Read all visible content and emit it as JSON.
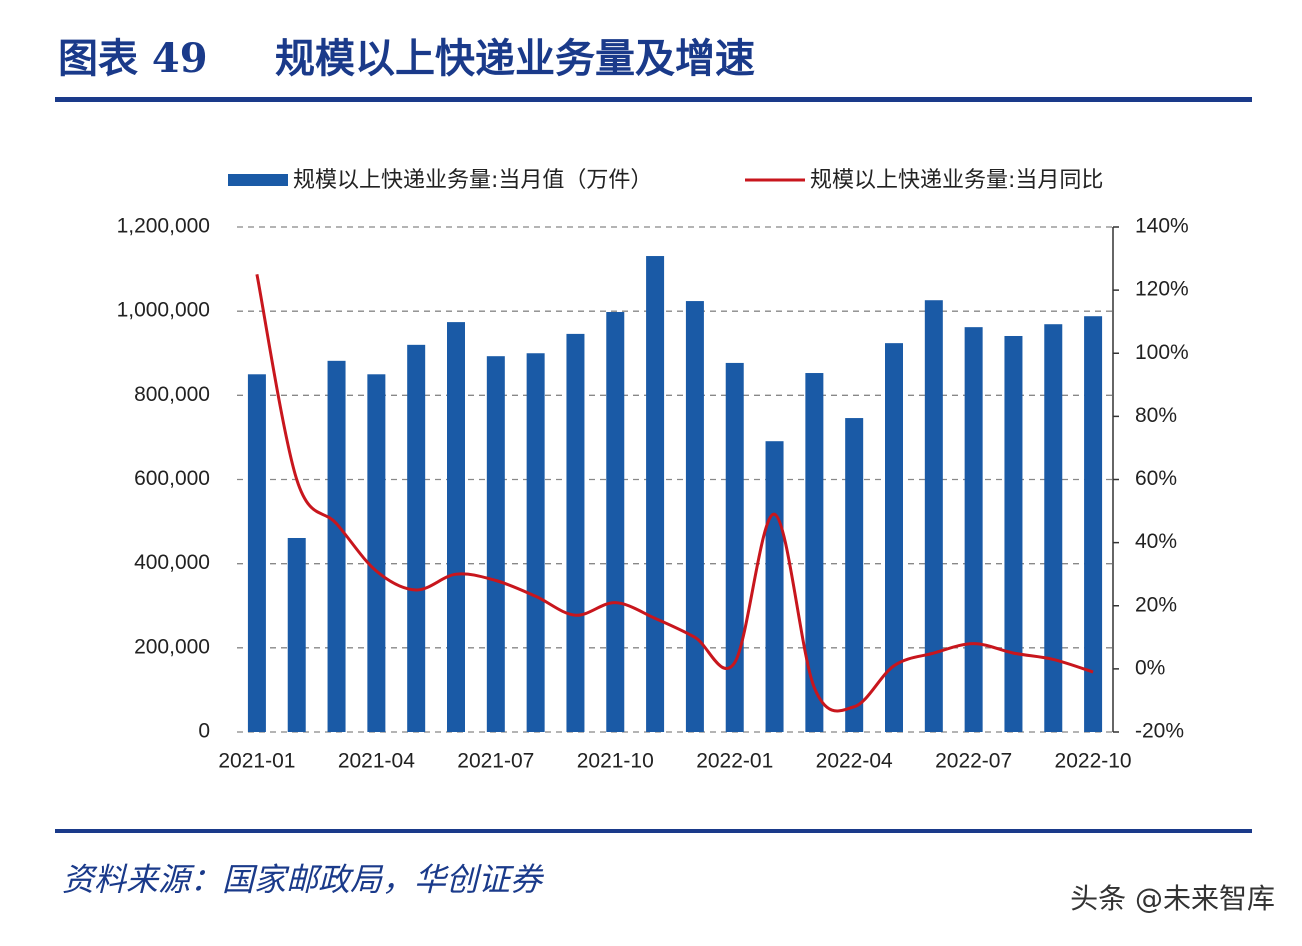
{
  "header": {
    "label": "图表 49",
    "title": "规模以上快递业务量及增速"
  },
  "chart_data": {
    "type": "bar-line",
    "categories": [
      "2021-01",
      null,
      null,
      "2021-04",
      null,
      null,
      "2021-07",
      null,
      null,
      "2021-10",
      null,
      null,
      "2022-01",
      null,
      null,
      "2022-04",
      null,
      null,
      "2022-07",
      null,
      null,
      "2022-10"
    ],
    "series": [
      {
        "name": "规模以上快递业务量:当月值（万件）",
        "type": "bar",
        "color": "#1a5aa6",
        "values": [
          850000,
          461000,
          882000,
          850000,
          920000,
          974000,
          893000,
          900000,
          946000,
          998000,
          1131000,
          1024000,
          877000,
          691000,
          853000,
          746000,
          924000,
          1026000,
          962000,
          941000,
          969000,
          988000
        ]
      },
      {
        "name": "规模以上快递业务量:当月同比",
        "type": "line",
        "axis": "y2",
        "color": "#c8161d",
        "values": [
          125,
          60,
          46,
          31,
          25,
          30,
          28,
          23,
          17,
          21,
          16,
          10,
          2,
          49,
          -6,
          -12,
          1,
          5,
          8,
          5,
          3,
          -1
        ]
      }
    ],
    "ylim": [
      0,
      1200000
    ],
    "yticks": [
      0,
      {
        "value": 200000,
        "label": "200,000"
      },
      {
        "value": 400000,
        "label": "400,000"
      },
      {
        "value": 600000,
        "label": "600,000"
      },
      {
        "value": 800000,
        "label": "800,000"
      },
      {
        "value": 1000000,
        "label": "1,000,000"
      },
      {
        "value": 1200000,
        "label": "1,200,000"
      }
    ],
    "y2lim": [
      -20,
      140
    ],
    "y2ticks": [
      {
        "value": -20,
        "label": "-20%"
      },
      {
        "value": 0,
        "label": "0%"
      },
      {
        "value": 20,
        "label": "20%"
      },
      {
        "value": 40,
        "label": "40%"
      },
      {
        "value": 60,
        "label": "60%"
      },
      {
        "value": 80,
        "label": "80%"
      },
      {
        "value": 100,
        "label": "100%"
      },
      {
        "value": 120,
        "label": "120%"
      },
      {
        "value": 140,
        "label": "140%"
      }
    ],
    "grid": true
  },
  "footer": {
    "source": "资料来源：国家邮政局，华创证券",
    "watermark": "头条 @未来智库"
  }
}
